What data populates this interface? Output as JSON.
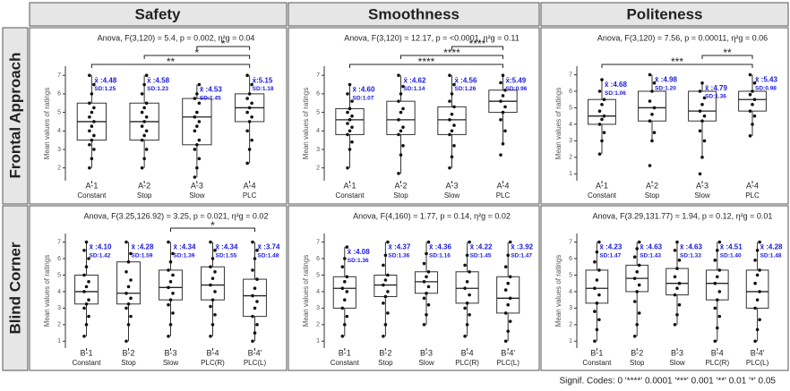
{
  "column_titles": [
    "Safety",
    "Smoothness",
    "Politeness"
  ],
  "row_titles": [
    "Frontal Approach",
    "Blind Corner"
  ],
  "footnote": "Signif. Codes: 0 '****' 0.0001 '***' 0.001 '**' 0.01 '*' 0.05",
  "chart_data": [
    {
      "type": "box",
      "subtitle": "Anova, F(3,120) = 5.4, p = 0.002, η²g = 0.04",
      "y_label": "Mean values of ratings",
      "categories": [
        "A-1",
        "A-2",
        "A-3",
        "A-4"
      ],
      "sublabels": [
        "Constant",
        "Stop",
        "Slow",
        "PLC"
      ],
      "ylim": [
        1.5,
        7.3
      ],
      "yticks": [
        2,
        3,
        4,
        5,
        6,
        7
      ],
      "boxes": [
        {
          "whisker_low": 2,
          "q1": 3.5,
          "median": 4.5,
          "q3": 5.5,
          "whisker_high": 7,
          "points": [
            2,
            2.5,
            3,
            3.25,
            3.5,
            3.75,
            4,
            4.25,
            4.5,
            4.75,
            5,
            5.25,
            5.5,
            6,
            6.5,
            7
          ]
        },
        {
          "whisker_low": 2,
          "q1": 3.5,
          "median": 4.5,
          "q3": 5.5,
          "whisker_high": 7,
          "points": [
            2,
            2.5,
            3,
            3.5,
            3.75,
            4,
            4.25,
            4.5,
            4.75,
            5,
            5.25,
            5.5,
            6,
            6.5,
            7
          ]
        },
        {
          "whisker_low": 1.5,
          "q1": 3.25,
          "median": 4.75,
          "q3": 5.75,
          "whisker_high": 6.5,
          "points": [
            1.5,
            2,
            2.5,
            3,
            3.25,
            3.5,
            4,
            4.25,
            4.5,
            4.75,
            5,
            5.5,
            5.75,
            6,
            6.5
          ]
        },
        {
          "whisker_low": 2.25,
          "q1": 4.5,
          "median": 5.25,
          "q3": 6,
          "whisker_high": 7,
          "points": [
            2.25,
            3,
            3.5,
            4,
            4.5,
            4.75,
            5,
            5.25,
            5.5,
            5.75,
            6,
            6.5,
            7
          ]
        }
      ],
      "mean_labels": [
        "x̄ :4.48",
        "x̄ :4.58",
        "x̄ :4.53",
        "x̄:5.15"
      ],
      "sd_labels": [
        "SD:1.25",
        "SD:1.23",
        "SD:1.45",
        "SD:1.18"
      ],
      "brackets": [
        {
          "from": "A-1",
          "to": "A-4",
          "label": "**"
        },
        {
          "from": "A-2",
          "to": "A-4",
          "label": "*"
        },
        {
          "from": "A-3",
          "to": "A-4",
          "label": "*"
        }
      ]
    },
    {
      "type": "box",
      "subtitle": "Anova, F(3,120) = 12.17, p = <0.0001, η²g = 0.11",
      "y_label": "Mean values of ratings",
      "categories": [
        "A-1",
        "A-2",
        "A-3",
        "A-4"
      ],
      "sublabels": [
        "Constant",
        "Stop",
        "Slow",
        "PLC"
      ],
      "ylim": [
        1.5,
        7.3
      ],
      "yticks": [
        2,
        3,
        4,
        5,
        6,
        7
      ],
      "boxes": [
        {
          "whisker_low": 2,
          "q1": 3.8,
          "median": 4.6,
          "q3": 5.2,
          "whisker_high": 6.5,
          "points": [
            2,
            3,
            3.4,
            3.8,
            4,
            4.2,
            4.4,
            4.6,
            4.8,
            5,
            5.2,
            5.6,
            6,
            6.5
          ]
        },
        {
          "whisker_low": 1.7,
          "q1": 3.8,
          "median": 4.6,
          "q3": 5.6,
          "whisker_high": 7,
          "points": [
            1.7,
            2.7,
            3.2,
            3.8,
            4,
            4.2,
            4.6,
            5,
            5.2,
            5.6,
            6,
            6.4,
            7
          ]
        },
        {
          "whisker_low": 2,
          "q1": 3.8,
          "median": 4.6,
          "q3": 5.3,
          "whisker_high": 7,
          "points": [
            2,
            2.6,
            3.2,
            3.8,
            4,
            4.3,
            4.6,
            4.9,
            5.3,
            5.6,
            6,
            6.5,
            7
          ]
        },
        {
          "whisker_low": 3.3,
          "q1": 5,
          "median": 5.6,
          "q3": 6.2,
          "whisker_high": 7,
          "points": [
            2.7,
            3.3,
            4,
            4.6,
            5,
            5.3,
            5.6,
            5.9,
            6.2,
            6.6,
            7
          ]
        }
      ],
      "mean_labels": [
        "x̄ :4.60",
        "x̄ :4.62",
        "x̄ :4.56",
        "x̄:5.49"
      ],
      "sd_labels": [
        "SD:1.07",
        "SD:1.14",
        "SD:1.26",
        "SD:0.96"
      ],
      "brackets": [
        {
          "from": "A-1",
          "to": "A-4",
          "label": "****"
        },
        {
          "from": "A-2",
          "to": "A-4",
          "label": "****"
        },
        {
          "from": "A-3",
          "to": "A-4",
          "label": "****"
        }
      ]
    },
    {
      "type": "box",
      "subtitle": "Anova, F(3,120) = 7.56, p = 0.00011, η²g = 0.06",
      "y_label": "Mean values of ratings",
      "categories": [
        "A-1",
        "A-2",
        "A-3",
        "A-4"
      ],
      "sublabels": [
        "Constant",
        "Stop",
        "Slow",
        "PLC"
      ],
      "ylim": [
        0.8,
        7.3
      ],
      "yticks": [
        1,
        2,
        3,
        4,
        5,
        6,
        7
      ],
      "boxes": [
        {
          "whisker_low": 2.2,
          "q1": 4,
          "median": 4.5,
          "q3": 5.5,
          "whisker_high": 6.7,
          "points": [
            2.2,
            3,
            3.5,
            4,
            4.3,
            4.5,
            4.8,
            5.2,
            5.5,
            6,
            6.7
          ]
        },
        {
          "whisker_low": 3,
          "q1": 4.2,
          "median": 5,
          "q3": 6,
          "whisker_high": 7,
          "points": [
            1.5,
            3,
            3.5,
            4.2,
            4.6,
            5,
            5.4,
            6,
            6.5,
            7
          ]
        },
        {
          "whisker_low": 2,
          "q1": 4.2,
          "median": 4.8,
          "q3": 6,
          "whisker_high": 6.5,
          "points": [
            1,
            2,
            3,
            3.6,
            4.2,
            4.5,
            4.8,
            5.2,
            5.6,
            6,
            6.5
          ]
        },
        {
          "whisker_low": 3.3,
          "q1": 4.8,
          "median": 5.5,
          "q3": 6,
          "whisker_high": 7,
          "points": [
            3.3,
            4,
            4.5,
            4.8,
            5.2,
            5.5,
            5.8,
            6,
            6.5,
            7
          ]
        }
      ],
      "mean_labels": [
        "x̄ :4.68",
        "x̄ :4.98",
        "x̄ :4.79",
        "x̄ :5.43"
      ],
      "sd_labels": [
        "SD:1.06",
        "SD:1.20",
        "SD:1.36",
        "SD:0.98"
      ],
      "brackets": [
        {
          "from": "A-1",
          "to": "A-4",
          "label": "***"
        },
        {
          "from": "A-3",
          "to": "A-4",
          "label": "**"
        }
      ]
    },
    {
      "type": "box",
      "subtitle": "Anova, F(3.25,126.92) = 3.25, p = 0.021, η²g = 0.02",
      "y_label": "Mean values of ratings",
      "categories": [
        "B-1",
        "B-2",
        "B-3",
        "B-4",
        "B-4'"
      ],
      "sublabels": [
        "Constant",
        "Stop",
        "Slow",
        "PLC(R)",
        "PLC(L)"
      ],
      "ylim": [
        0.8,
        7.3
      ],
      "yticks": [
        1,
        2,
        3,
        4,
        5,
        6,
        7
      ],
      "boxes": [
        {
          "whisker_low": 1.3,
          "q1": 3.25,
          "median": 4,
          "q3": 5,
          "whisker_high": 7,
          "points": [
            1.3,
            2,
            2.5,
            3,
            3.25,
            3.5,
            4,
            4.3,
            4.6,
            5,
            5.5,
            6,
            6.5,
            7
          ]
        },
        {
          "whisker_low": 1,
          "q1": 3.25,
          "median": 3.9,
          "q3": 5.8,
          "whisker_high": 7,
          "points": [
            1,
            2,
            2.5,
            3,
            3.25,
            3.6,
            3.9,
            4.3,
            4.7,
            5.2,
            5.8,
            6.3,
            7
          ]
        },
        {
          "whisker_low": 1.3,
          "q1": 3.5,
          "median": 4.25,
          "q3": 5.3,
          "whisker_high": 7,
          "points": [
            1.3,
            2,
            2.7,
            3.2,
            3.5,
            3.9,
            4.25,
            4.6,
            5,
            5.3,
            5.8,
            6.3,
            7
          ]
        },
        {
          "whisker_low": 1.3,
          "q1": 3.5,
          "median": 4.4,
          "q3": 5.5,
          "whisker_high": 7,
          "points": [
            1.3,
            2,
            2.6,
            3.1,
            3.5,
            4,
            4.4,
            4.8,
            5.2,
            5.5,
            6,
            6.5,
            7
          ]
        },
        {
          "whisker_low": 1,
          "q1": 2.5,
          "median": 3.75,
          "q3": 4.75,
          "whisker_high": 7,
          "points": [
            1,
            1.5,
            2,
            2.5,
            3,
            3.4,
            3.75,
            4.2,
            4.75,
            5.3,
            6,
            6.5,
            7
          ]
        }
      ],
      "mean_labels": [
        "x̄ :4.10",
        "x̄ :4.28",
        "x̄ :4.34",
        "x̄ :4.34",
        "x̄ :3.74"
      ],
      "sd_labels": [
        "SD:1.42",
        "SD:1.59",
        "SD:1.39",
        "SD:1.55",
        "SD:1.48"
      ],
      "brackets": [
        {
          "from": "B-3",
          "to": "B-4'",
          "label": "*"
        }
      ]
    },
    {
      "type": "box",
      "subtitle": "Anova, F(4,160) = 1.77, p = 0.14, η²g = 0.02",
      "y_label": "Mean values of ratings",
      "categories": [
        "B-1",
        "B-2",
        "B-3",
        "B-4",
        "B-4'"
      ],
      "sublabels": [
        "Constant",
        "Stop",
        "Slow",
        "PLC(R)",
        "PLC(L)"
      ],
      "ylim": [
        0.8,
        7.3
      ],
      "yticks": [
        1,
        2,
        3,
        4,
        5,
        6,
        7
      ],
      "boxes": [
        {
          "whisker_low": 1.3,
          "q1": 3,
          "median": 4.2,
          "q3": 4.9,
          "whisker_high": 6.7,
          "points": [
            1.3,
            2,
            2.5,
            3,
            3.5,
            4,
            4.2,
            4.6,
            4.9,
            5.5,
            6,
            6.7
          ]
        },
        {
          "whisker_low": 1.3,
          "q1": 3.7,
          "median": 4.4,
          "q3": 5,
          "whisker_high": 7,
          "points": [
            1.3,
            2,
            2.7,
            3.3,
            3.7,
            4,
            4.4,
            4.7,
            5,
            5.6,
            6.2,
            7
          ]
        },
        {
          "whisker_low": 2,
          "q1": 3.9,
          "median": 4.6,
          "q3": 5.2,
          "whisker_high": 7,
          "points": [
            2,
            2.6,
            3.2,
            3.6,
            3.9,
            4.3,
            4.6,
            4.9,
            5.2,
            5.7,
            6.3,
            7
          ]
        },
        {
          "whisker_low": 1.3,
          "q1": 3.3,
          "median": 4.2,
          "q3": 5.2,
          "whisker_high": 7,
          "points": [
            1.3,
            2,
            2.6,
            3,
            3.3,
            3.8,
            4.2,
            4.6,
            5.2,
            5.6,
            6.2,
            7
          ]
        },
        {
          "whisker_low": 1,
          "q1": 2.7,
          "median": 3.6,
          "q3": 4.9,
          "whisker_high": 7,
          "points": [
            1,
            1.6,
            2.2,
            2.7,
            3.2,
            3.6,
            4.1,
            4.5,
            4.9,
            5.5,
            6.2,
            7
          ]
        }
      ],
      "mean_labels": [
        "x̄ :4.08",
        "x̄ :4.37",
        "x̄ :4.36",
        "x̄ :4.22",
        "x̄ :3.92"
      ],
      "sd_labels": [
        "SD:1.36",
        "SD:1.36",
        "SD:1.16",
        "SD:1.45",
        "SD:1.47"
      ],
      "brackets": []
    },
    {
      "type": "box",
      "subtitle": "Anova, F(3.29,131.77) = 1.94, p = 0.12, η²g = 0.01",
      "y_label": "Mean values of ratings",
      "categories": [
        "B-1",
        "B-2",
        "B-3",
        "B-4",
        "B-4'"
      ],
      "sublabels": [
        "Constant",
        "Stop",
        "Slow",
        "PLC(R)",
        "PLC(L)"
      ],
      "ylim": [
        0.8,
        7.3
      ],
      "yticks": [
        1,
        2,
        3,
        4,
        5,
        6,
        7
      ],
      "boxes": [
        {
          "whisker_low": 1,
          "q1": 3.3,
          "median": 4.2,
          "q3": 5.3,
          "whisker_high": 7,
          "points": [
            1,
            1.7,
            2.3,
            2.8,
            3.3,
            3.8,
            4.2,
            4.7,
            5.3,
            5.8,
            6.4,
            7
          ]
        },
        {
          "whisker_low": 1.3,
          "q1": 4,
          "median": 4.8,
          "q3": 5.6,
          "whisker_high": 7,
          "points": [
            1.3,
            2,
            2.7,
            3.4,
            4,
            4.4,
            4.8,
            5.2,
            5.6,
            6.1,
            6.6,
            7
          ]
        },
        {
          "whisker_low": 2,
          "q1": 3.8,
          "median": 4.5,
          "q3": 5.4,
          "whisker_high": 7,
          "points": [
            2,
            2.6,
            3.2,
            3.8,
            4.2,
            4.5,
            4.9,
            5.4,
            5.9,
            6.5,
            7
          ]
        },
        {
          "whisker_low": 1,
          "q1": 3.5,
          "median": 4.5,
          "q3": 5.3,
          "whisker_high": 7,
          "points": [
            1,
            1.8,
            2.5,
            3,
            3.5,
            4,
            4.5,
            4.9,
            5.3,
            5.9,
            6.5,
            7
          ]
        },
        {
          "whisker_low": 1,
          "q1": 3,
          "median": 4,
          "q3": 5.3,
          "whisker_high": 7,
          "points": [
            1,
            1.7,
            2.3,
            3,
            3.5,
            4,
            4.5,
            5,
            5.3,
            5.9,
            6.5,
            7
          ]
        }
      ],
      "mean_labels": [
        "x̄ :4.23",
        "x̄ :4.63",
        "x̄ :4.63",
        "x̄ :4.51",
        "x̄ :4.28"
      ],
      "sd_labels": [
        "SD:1.47",
        "SD:1.43",
        "SD:1.33",
        "SD:1.40",
        "SD:1.48"
      ],
      "brackets": []
    }
  ]
}
